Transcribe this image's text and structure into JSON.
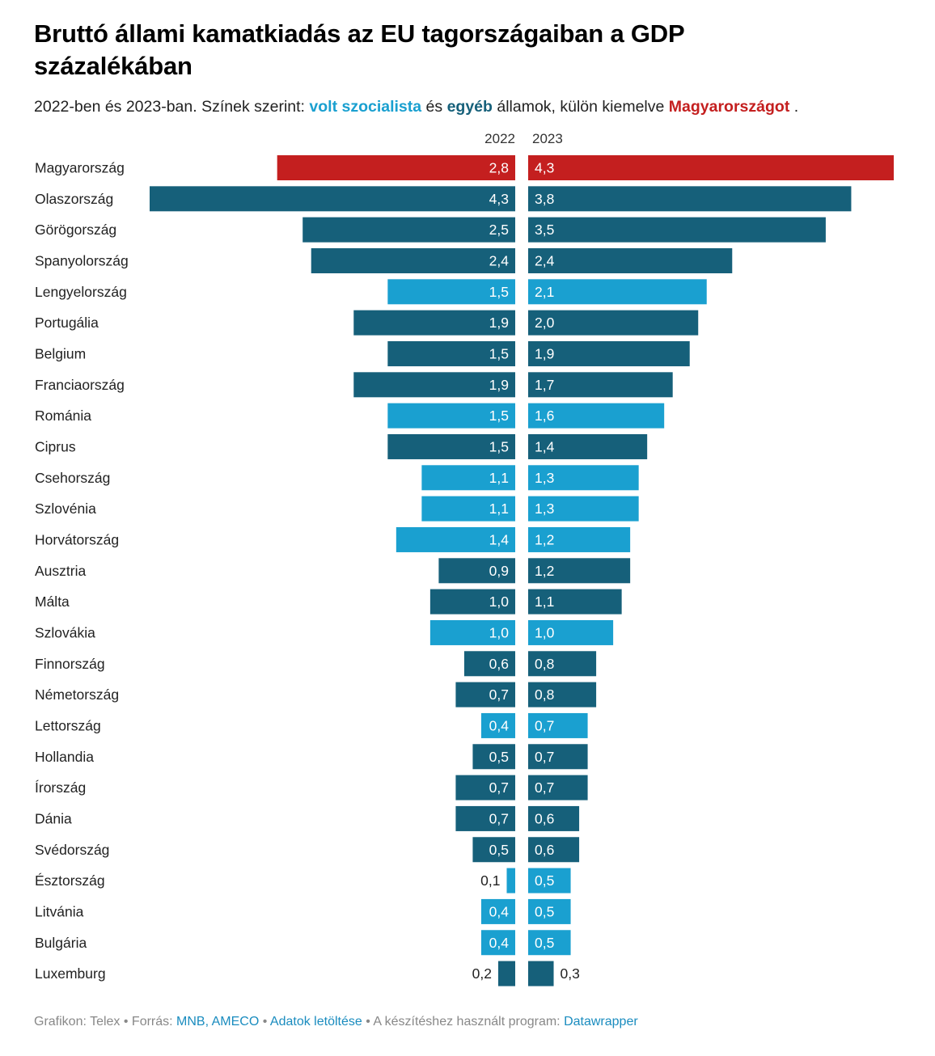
{
  "title": "Bruttó állami kamatkiadás az EU tagországaiban a GDP százalékában",
  "subtitle": {
    "part1": "2022-ben és 2023-ban. Színek szerint:",
    "socialist": "volt szocialista",
    "part2": "és",
    "other": "egyéb",
    "part3": "államok, külön kiemelve",
    "hungary": "Magyarországot",
    "part4": "."
  },
  "colors": {
    "hungary": "#c41f1f",
    "socialist": "#1aa0d0",
    "other": "#16607a"
  },
  "chart_data": {
    "type": "bar",
    "layout": "butterfly",
    "title": "Bruttó állami kamatkiadás az EU tagországaiban a GDP százalékában",
    "series_names": [
      "2022",
      "2023"
    ],
    "categories": [
      "Magyarország",
      "Olaszország",
      "Görögország",
      "Spanyolország",
      "Lengyelország",
      "Portugália",
      "Belgium",
      "Franciaország",
      "Románia",
      "Ciprus",
      "Csehország",
      "Szlovénia",
      "Horvátország",
      "Ausztria",
      "Málta",
      "Szlovákia",
      "Finnország",
      "Németország",
      "Lettország",
      "Hollandia",
      "Írország",
      "Dánia",
      "Svédország",
      "Észtország",
      "Litvánia",
      "Bulgária",
      "Luxemburg"
    ],
    "groups": [
      "hungary",
      "other",
      "other",
      "other",
      "socialist",
      "other",
      "other",
      "other",
      "socialist",
      "other",
      "socialist",
      "socialist",
      "socialist",
      "other",
      "other",
      "socialist",
      "other",
      "other",
      "socialist",
      "other",
      "other",
      "other",
      "other",
      "socialist",
      "socialist",
      "socialist",
      "other"
    ],
    "series": [
      {
        "name": "2022",
        "values": [
          2.8,
          4.3,
          2.5,
          2.4,
          1.5,
          1.9,
          1.5,
          1.9,
          1.5,
          1.5,
          1.1,
          1.1,
          1.4,
          0.9,
          1.0,
          1.0,
          0.6,
          0.7,
          0.4,
          0.5,
          0.7,
          0.7,
          0.5,
          0.1,
          0.4,
          0.4,
          0.2
        ]
      },
      {
        "name": "2023",
        "values": [
          4.3,
          3.8,
          3.5,
          2.4,
          2.1,
          2.0,
          1.9,
          1.7,
          1.6,
          1.4,
          1.3,
          1.3,
          1.2,
          1.2,
          1.1,
          1.0,
          0.8,
          0.8,
          0.7,
          0.7,
          0.7,
          0.6,
          0.6,
          0.5,
          0.5,
          0.5,
          0.3
        ]
      }
    ],
    "labels_2022": [
      "2,8",
      "4,3",
      "2,5",
      "2,4",
      "1,5",
      "1,9",
      "1,5",
      "1,9",
      "1,5",
      "1,5",
      "1,1",
      "1,1",
      "1,4",
      "0,9",
      "1,0",
      "1,0",
      "0,6",
      "0,7",
      "0,4",
      "0,5",
      "0,7",
      "0,7",
      "0,5",
      "0,1",
      "0,4",
      "0,4",
      "0,2"
    ],
    "labels_2023": [
      "4,3",
      "3,8",
      "3,5",
      "2,4",
      "2,1",
      "2,0",
      "1,9",
      "1,7",
      "1,6",
      "1,4",
      "1,3",
      "1,3",
      "1,2",
      "1,2",
      "1,1",
      "1,0",
      "0,8",
      "0,8",
      "0,7",
      "0,7",
      "0,7",
      "0,6",
      "0,6",
      "0,5",
      "0,5",
      "0,5",
      "0,3"
    ],
    "xlim": [
      0,
      4.3
    ],
    "grid": false,
    "legend": "none"
  },
  "footer": {
    "prefix": "Grafikon: Telex • Forrás:",
    "source_link": "MNB, AMECO",
    "sep1": "•",
    "download_link": "Adatok letöltése",
    "sep2": "• A készítéshez használt program:",
    "tool_link": "Datawrapper"
  }
}
